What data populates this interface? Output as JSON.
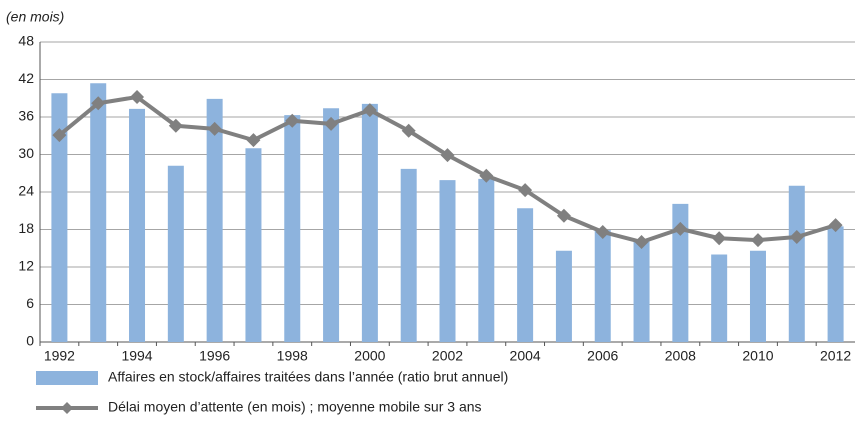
{
  "chart_data": {
    "type": "bar",
    "y_label": "(en mois)",
    "categories": [
      "1992",
      null,
      "1994",
      null,
      "1996",
      null,
      "1998",
      null,
      "2000",
      null,
      "2002",
      null,
      "2004",
      null,
      "2006",
      null,
      "2008",
      null,
      "2010",
      null,
      "2012"
    ],
    "series": [
      {
        "name": "Affaires en stock/affaires traitées dans l’année (ratio brut annuel)",
        "type": "bar",
        "color": "#8db3dd",
        "values": [
          39.8,
          41.4,
          37.3,
          28.2,
          38.9,
          31.0,
          36.3,
          37.4,
          38.1,
          27.7,
          25.9,
          26.1,
          21.4,
          14.6,
          17.9,
          16.2,
          22.1,
          14.0,
          14.6,
          25.0,
          18.5
        ]
      },
      {
        "name": "Délai moyen d’attente (en mois) ; moyenne mobile sur 3 ans",
        "type": "line",
        "color": "#808080",
        "values": [
          33.1,
          38.2,
          39.2,
          34.6,
          34.1,
          32.3,
          35.4,
          34.9,
          37.1,
          33.8,
          29.9,
          26.6,
          24.3,
          20.2,
          17.6,
          16.0,
          18.1,
          16.6,
          16.3,
          16.8,
          18.7
        ]
      }
    ],
    "ylim": [
      0,
      48
    ],
    "yticks": [
      0,
      6,
      12,
      18,
      24,
      30,
      36,
      42,
      48
    ],
    "grid": true
  }
}
